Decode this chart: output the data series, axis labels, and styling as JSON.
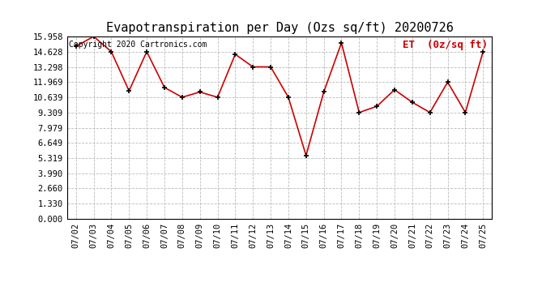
{
  "title": "Evapotranspiration per Day (Ozs sq/ft) 20200726",
  "copyright_text": "Copyright 2020 Cartronics.com",
  "legend_label": "ET  (0z/sq ft)",
  "dates": [
    "07/02",
    "07/03",
    "07/04",
    "07/05",
    "07/06",
    "07/07",
    "07/08",
    "07/09",
    "07/10",
    "07/11",
    "07/12",
    "07/13",
    "07/14",
    "07/15",
    "07/16",
    "07/17",
    "07/18",
    "07/19",
    "07/20",
    "07/21",
    "07/22",
    "07/23",
    "07/24",
    "07/25"
  ],
  "values": [
    15.1,
    15.958,
    14.628,
    11.2,
    14.628,
    11.5,
    10.639,
    11.1,
    10.639,
    14.4,
    13.298,
    13.298,
    10.639,
    5.55,
    11.1,
    15.4,
    9.309,
    9.85,
    11.3,
    10.2,
    9.309,
    11.969,
    9.309,
    14.628
  ],
  "yticks": [
    0.0,
    1.33,
    2.66,
    3.99,
    5.319,
    6.649,
    7.979,
    9.309,
    10.639,
    11.969,
    13.298,
    14.628,
    15.958
  ],
  "ymin": 0.0,
  "ymax": 15.958,
  "line_color": "#cc0000",
  "marker_color": "#000000",
  "background_color": "#ffffff",
  "grid_color": "#bbbbbb",
  "title_fontsize": 11,
  "copyright_fontsize": 7,
  "legend_fontsize": 9,
  "tick_fontsize": 7.5
}
